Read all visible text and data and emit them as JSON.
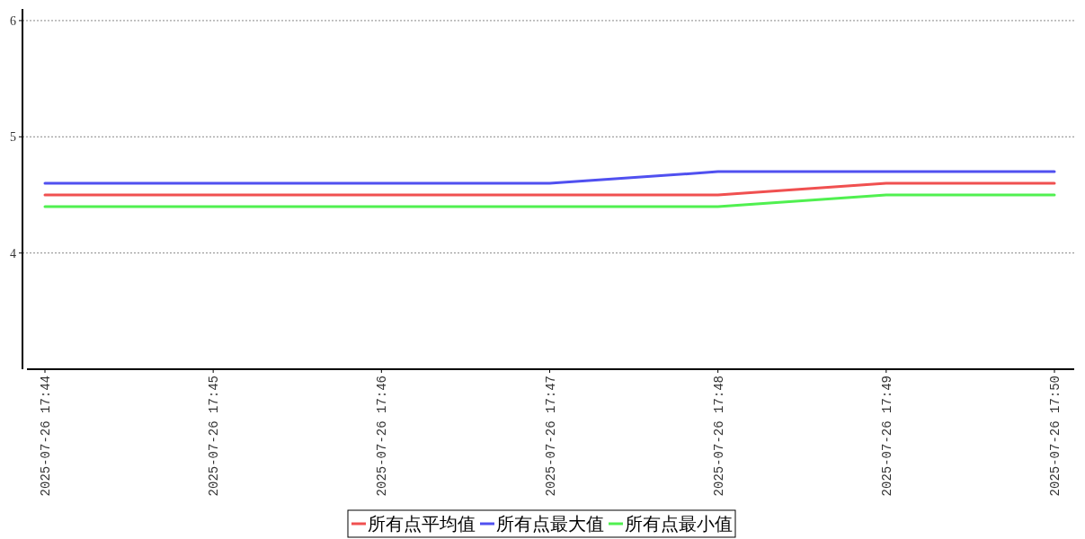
{
  "chart_data": {
    "type": "line",
    "categories": [
      "2025-07-26 17:44",
      "2025-07-26 17:45",
      "2025-07-26 17:46",
      "2025-07-26 17:47",
      "2025-07-26 17:48",
      "2025-07-26 17:49",
      "2025-07-26 17:50"
    ],
    "series": [
      {
        "name": "所有点平均值",
        "color": "#f05050",
        "values": [
          4.5,
          4.5,
          4.5,
          4.5,
          4.5,
          4.6,
          4.6
        ]
      },
      {
        "name": "所有点最大值",
        "color": "#5050f0",
        "values": [
          4.6,
          4.6,
          4.6,
          4.6,
          4.7,
          4.7,
          4.7
        ]
      },
      {
        "name": "所有点最小值",
        "color": "#50f050",
        "values": [
          4.4,
          4.4,
          4.4,
          4.4,
          4.4,
          4.5,
          4.5
        ]
      }
    ],
    "ylim": [
      3,
      6.1
    ],
    "yticks": [
      4,
      5,
      6
    ],
    "grid": "y",
    "legend": "bottom"
  }
}
